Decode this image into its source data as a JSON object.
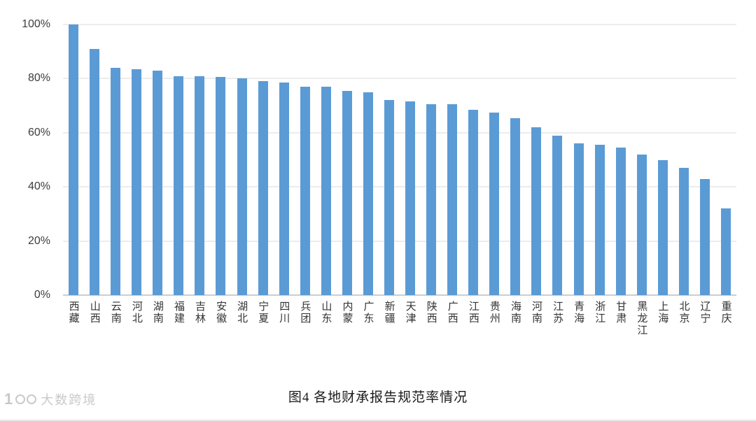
{
  "chart_data": {
    "type": "bar",
    "title": "图4 各地财承报告规范率情况",
    "bar_color": "#5B9BD5",
    "ylim": [
      0,
      100
    ],
    "ymax": 100,
    "yticks": [
      0,
      20,
      40,
      60,
      80,
      100
    ],
    "ytick_suffix": "%",
    "grid": true,
    "legend_position": "none",
    "xlabel": "",
    "ylabel": "",
    "categories": [
      "西藏",
      "山西",
      "云南",
      "河北",
      "湖南",
      "福建",
      "吉林",
      "安徽",
      "湖北",
      "宁夏",
      "四川",
      "兵团",
      "山东",
      "内蒙",
      "广东",
      "新疆",
      "天津",
      "陕西",
      "广西",
      "江西",
      "贵州",
      "海南",
      "河南",
      "江苏",
      "青海",
      "浙江",
      "甘肃",
      "黑龙江",
      "上海",
      "北京",
      "辽宁",
      "重庆"
    ],
    "values": [
      100,
      91,
      84,
      83.5,
      83,
      81,
      81,
      80.5,
      80,
      79,
      78.5,
      77,
      77,
      75.5,
      75,
      72,
      71.5,
      70.5,
      70.5,
      68.5,
      67.5,
      65.5,
      62,
      59,
      56,
      55.5,
      54.5,
      52,
      50,
      47,
      43,
      32
    ]
  },
  "caption": "图4 各地财承报告规范率情况",
  "watermark": {
    "text": "大数跨境"
  }
}
